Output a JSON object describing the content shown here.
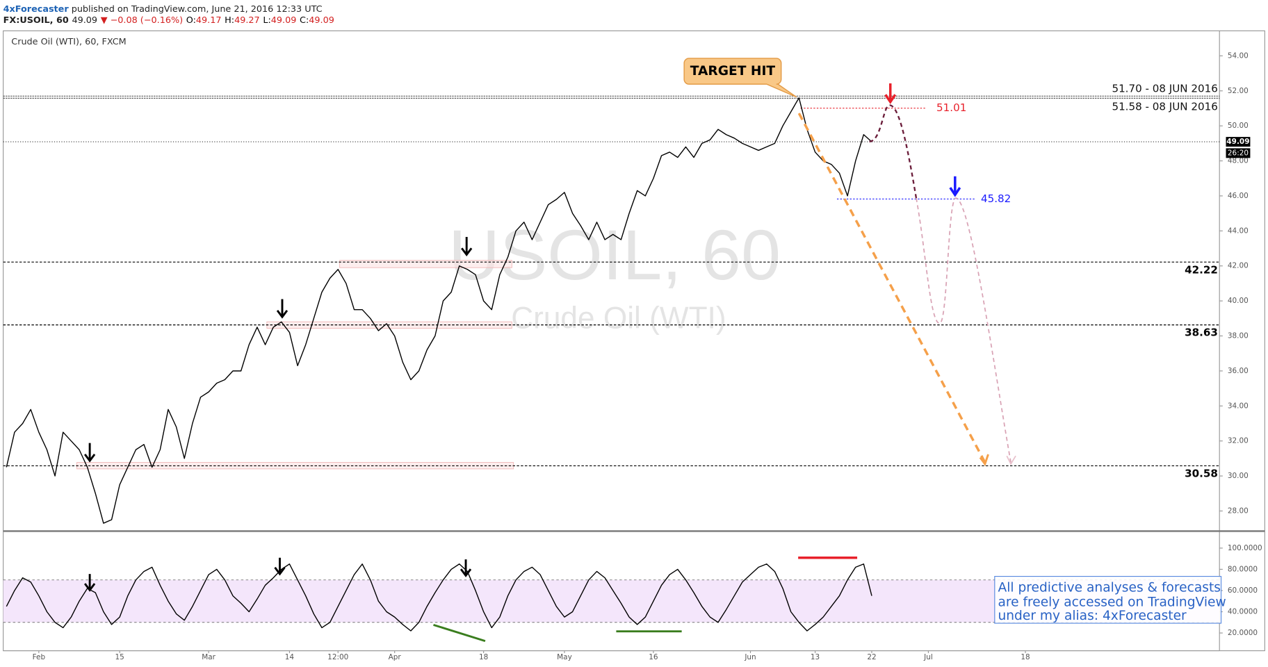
{
  "header": {
    "author": "4xForecaster",
    "published": " published on TradingView.com, June 21, 2016 12:33 UTC",
    "symbol": "FX:USOIL, 60",
    "last": "49.09",
    "change": "▼ −0.08 (−0.16%)",
    "ohlc": [
      {
        "key": "O:",
        "value": "49.17"
      },
      {
        "key": "H:",
        "value": "49.27"
      },
      {
        "key": "L:",
        "value": "49.09"
      },
      {
        "key": "C:",
        "value": "49.09"
      }
    ]
  },
  "chart_data": [
    {
      "type": "line",
      "title": "Crude Oil (WTI), 60, FXCM",
      "watermark": "USOIL, 60",
      "watermark_subtitle": "Crude Oil (WTI)",
      "color": "#000000",
      "categories": [
        null,
        null,
        null,
        null,
        "Feb",
        null,
        null,
        null,
        null,
        null,
        null,
        null,
        null,
        null,
        "15",
        null,
        null,
        null,
        null,
        null,
        null,
        null,
        null,
        null,
        null,
        "Mar",
        null,
        null,
        null,
        null,
        null,
        null,
        null,
        null,
        null,
        "14",
        null,
        null,
        null,
        null,
        null,
        "12:00",
        null,
        null,
        null,
        null,
        null,
        null,
        "Apr",
        null,
        null,
        null,
        null,
        null,
        null,
        null,
        null,
        null,
        null,
        "18",
        null,
        null,
        null,
        null,
        null,
        null,
        null,
        null,
        null,
        "May",
        null,
        null,
        null,
        null,
        null,
        null,
        null,
        null,
        null,
        null,
        "16",
        null,
        null,
        null,
        null,
        null,
        null,
        null,
        null,
        null,
        null,
        null,
        "Jun",
        null,
        null,
        null,
        null,
        null,
        null,
        null,
        "13",
        null,
        null,
        null,
        null,
        null,
        null,
        "22",
        null,
        null,
        null,
        null,
        null,
        null,
        "Jul",
        null,
        null,
        null,
        null,
        null,
        null,
        null,
        null,
        null,
        null,
        null,
        "18",
        null,
        null,
        null,
        null,
        null,
        null,
        null,
        null,
        null,
        null,
        null,
        null,
        null,
        null,
        null,
        null,
        null,
        null,
        null,
        null,
        null,
        null,
        null
      ],
      "values": [
        30.5,
        32.5,
        33,
        33.8,
        32.5,
        31.5,
        30,
        32.5,
        32,
        31.5,
        30.5,
        29,
        27.3,
        27.5,
        29.5,
        30.5,
        31.5,
        31.8,
        30.5,
        31.5,
        33.8,
        32.8,
        31,
        33,
        34.5,
        34.8,
        35.3,
        35.5,
        36,
        36,
        37.5,
        38.5,
        37.5,
        38.5,
        38.8,
        38.2,
        36.3,
        37.5,
        39,
        40.5,
        41.3,
        41.8,
        41,
        39.5,
        39.5,
        39,
        38.3,
        38.7,
        38,
        36.5,
        35.5,
        36,
        37.2,
        38,
        40,
        40.5,
        42,
        41.8,
        41.5,
        40,
        39.5,
        41.5,
        42.5,
        44,
        44.5,
        43.5,
        44.5,
        45.5,
        45.8,
        46.2,
        45,
        44.3,
        43.5,
        44.5,
        43.5,
        43.8,
        43.5,
        45,
        46.3,
        46,
        47,
        48.3,
        48.5,
        48.2,
        48.8,
        48.2,
        49,
        49.2,
        49.8,
        49.5,
        49.3,
        49,
        48.8,
        48.6,
        48.8,
        49,
        50,
        50.8,
        51.6,
        49.8,
        48.5,
        48,
        47.8,
        47.3,
        46,
        48,
        49.5,
        49.09,
        null,
        null,
        null,
        null,
        null,
        null,
        null,
        null,
        null,
        null,
        null,
        null,
        null,
        null,
        null,
        null,
        null,
        null,
        null,
        null,
        null,
        null,
        null,
        null,
        null,
        null,
        null,
        null,
        null,
        null,
        null,
        null,
        null,
        null,
        null,
        null,
        null,
        null,
        null,
        null,
        null,
        null
      ],
      "ylim": [
        26.85,
        55.43
      ],
      "yticks": [
        {
          "value": 28,
          "label": "28.00"
        },
        {
          "value": 30,
          "label": "30.00"
        },
        {
          "value": 32,
          "label": "32.00"
        },
        {
          "value": 34,
          "label": "34.00"
        },
        {
          "value": 36,
          "label": "36.00"
        },
        {
          "value": 38,
          "label": "38.00"
        },
        {
          "value": 40,
          "label": "40.00"
        },
        {
          "value": 42,
          "label": "42.00"
        },
        {
          "value": 44,
          "label": "44.00"
        },
        {
          "value": 46,
          "label": "46.00"
        },
        {
          "value": 48,
          "label": "48.00"
        },
        {
          "value": 50,
          "label": "50.00"
        },
        {
          "value": 52,
          "label": "52.00"
        },
        {
          "value": 54,
          "label": "54.00"
        }
      ],
      "levels": [
        {
          "value": 51.7,
          "label": "51.70 - 08 JUN 2016",
          "color": "#555555"
        },
        {
          "value": 51.58,
          "label": "51.58 - 08 JUN 2016",
          "color": "#555555"
        },
        {
          "value": 51.01,
          "color": "#e8212b"
        },
        {
          "value": 49.09,
          "color": "#333333"
        },
        {
          "value": 45.82,
          "color": "#1a1aff"
        },
        {
          "value": 42.22,
          "color": "#000000"
        },
        {
          "value": 38.63,
          "color": "#000000"
        },
        {
          "value": 30.58,
          "color": "#000000"
        }
      ],
      "countdown": "26:20",
      "annotations": [
        "TARGET HIT"
      ]
    },
    {
      "type": "line",
      "color": "#000000",
      "values": [
        45,
        60,
        72,
        68,
        55,
        40,
        30,
        25,
        35,
        50,
        62,
        58,
        40,
        28,
        35,
        55,
        70,
        78,
        82,
        65,
        50,
        38,
        32,
        45,
        60,
        75,
        80,
        70,
        55,
        48,
        40,
        52,
        65,
        72,
        80,
        85,
        70,
        55,
        38,
        25,
        30,
        45,
        60,
        75,
        85,
        70,
        50,
        40,
        35,
        28,
        22,
        30,
        45,
        58,
        70,
        80,
        85,
        78,
        60,
        40,
        25,
        35,
        55,
        70,
        78,
        82,
        75,
        60,
        45,
        35,
        40,
        55,
        70,
        78,
        72,
        60,
        48,
        35,
        28,
        35,
        50,
        65,
        75,
        80,
        70,
        58,
        45,
        35,
        30,
        42,
        55,
        68,
        75,
        82,
        85,
        78,
        62,
        40,
        30,
        22,
        28,
        35,
        45,
        55,
        70,
        82,
        85,
        55,
        null,
        null,
        null,
        null,
        null,
        null,
        null,
        null,
        null,
        null,
        null,
        null,
        null,
        null,
        null,
        null,
        null,
        null,
        null,
        null,
        null,
        null,
        null,
        null,
        null,
        null,
        null,
        null,
        null,
        null,
        null,
        null,
        null,
        null,
        null,
        null,
        null,
        null,
        null,
        null,
        null,
        null
      ],
      "ylim": [
        4.8,
        116
      ],
      "yticks": [
        {
          "value": 20,
          "label": "20.0000"
        },
        {
          "value": 40,
          "label": "40.0000"
        },
        {
          "value": 60,
          "label": "60.0000"
        },
        {
          "value": 80,
          "label": "80.0000"
        },
        {
          "value": 100,
          "label": "100.0000"
        }
      ],
      "band": [
        30,
        70
      ],
      "band_color": "#f4e6fb",
      "annotations": [
        "All predictive analyses & forecasts",
        "are freely accessed on TradingView",
        "under my alias: 4xForecaster"
      ]
    }
  ]
}
